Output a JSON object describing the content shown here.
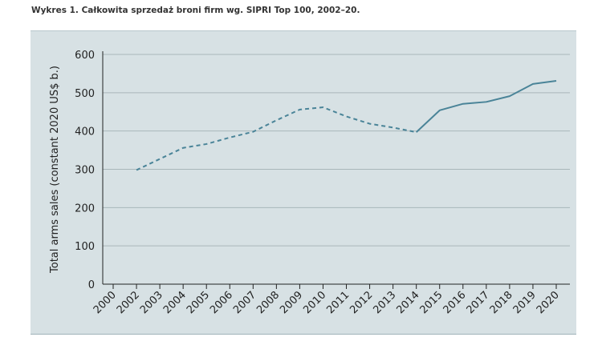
{
  "title": "Wykres 1. Całkowita sprzedaż broni firm wg. SIPRI Top 100, 2002–20.",
  "chart_data": {
    "type": "line",
    "title": "Wykres 1. Całkowita sprzedaż broni firm wg. SIPRI Top 100, 2002–20.",
    "xlabel": "",
    "ylabel": "Total arms sales (constant 2020 US$ b.)",
    "ylim": [
      0,
      600
    ],
    "yticks": [
      "0",
      "100",
      "200",
      "300",
      "400",
      "500",
      "600"
    ],
    "xticks": [
      "2000",
      "2002",
      "2003",
      "2004",
      "2005",
      "2006",
      "2007",
      "2008",
      "2009",
      "2010",
      "2011",
      "2012",
      "2013",
      "2014",
      "2015",
      "2016",
      "2017",
      "2018",
      "2019",
      "2020"
    ],
    "grid": true,
    "color": "#4a8498",
    "series": [
      {
        "name": "dashed",
        "style": "dashed",
        "x": [
          "2002",
          "2003",
          "2004",
          "2005",
          "2006",
          "2007",
          "2008",
          "2009",
          "2010",
          "2011",
          "2012",
          "2013",
          "2014"
        ],
        "values": [
          298,
          327,
          356,
          366,
          383,
          398,
          428,
          456,
          462,
          438,
          419,
          409,
          397
        ]
      },
      {
        "name": "solid",
        "style": "solid",
        "x": [
          "2014",
          "2015",
          "2016",
          "2017",
          "2018",
          "2019",
          "2020"
        ],
        "values": [
          397,
          454,
          471,
          476,
          491,
          523,
          531
        ]
      }
    ]
  }
}
